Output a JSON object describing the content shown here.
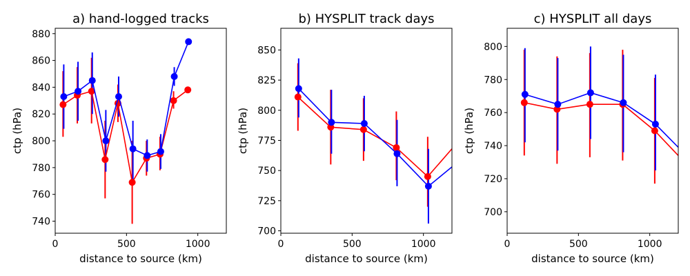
{
  "colors": {
    "series_red": "#ff0000",
    "series_blue": "#0000ff",
    "axis": "#000000",
    "background": "#ffffff"
  },
  "chart_data": [
    {
      "type": "line",
      "title": "a) hand-logged tracks",
      "xlabel": "distance to source (km)",
      "ylabel": "ctp (hPa)",
      "xlim": [
        0,
        1200
      ],
      "ylim": [
        731,
        884
      ],
      "xticks": [
        0,
        500,
        1000
      ],
      "xtick_labels": [
        "0",
        "500",
        "1000"
      ],
      "yticks": [
        740,
        760,
        780,
        800,
        820,
        840,
        860,
        880
      ],
      "ytick_labels": [
        "740",
        "760",
        "780",
        "800",
        "820",
        "840",
        "860",
        "880"
      ],
      "grid": false,
      "series": [
        {
          "name": "red",
          "color": "#ff0000",
          "x": [
            55,
            155,
            255,
            350,
            440,
            540,
            640,
            735,
            830,
            930
          ],
          "y": [
            827,
            834,
            837,
            786,
            828,
            769,
            787,
            790,
            830,
            838
          ],
          "err_low": [
            803,
            813,
            813,
            757,
            814,
            738,
            774,
            778,
            824,
            null
          ],
          "err_high": [
            852,
            855,
            862,
            815,
            842,
            800,
            800,
            803,
            837,
            null
          ]
        },
        {
          "name": "blue",
          "color": "#0000ff",
          "x": [
            60,
            160,
            260,
            355,
            445,
            545,
            645,
            740,
            835,
            935
          ],
          "y": [
            833,
            837,
            845,
            800,
            833,
            794,
            789,
            792,
            848,
            874
          ],
          "err_low": [
            809,
            815,
            820,
            777,
            818,
            770,
            777,
            779,
            841,
            null
          ],
          "err_high": [
            857,
            859,
            866,
            823,
            848,
            815,
            801,
            805,
            855,
            null
          ]
        }
      ]
    },
    {
      "type": "line",
      "title": "b) HYSPLIT track days",
      "xlabel": "distance to source (km)",
      "ylabel": "ctp (hPa)",
      "xlim": [
        0,
        1200
      ],
      "ylim": [
        698,
        868
      ],
      "xticks": [
        0,
        500,
        1000
      ],
      "xtick_labels": [
        "0",
        "500",
        "1000"
      ],
      "yticks": [
        700,
        725,
        750,
        775,
        800,
        825,
        850
      ],
      "ytick_labels": [
        "700",
        "725",
        "750",
        "775",
        "800",
        "825",
        "850"
      ],
      "grid": false,
      "series": [
        {
          "name": "red",
          "color": "#ff0000",
          "x": [
            120,
            350,
            580,
            810,
            1030,
            1200
          ],
          "y": [
            811,
            786,
            784,
            769,
            745,
            768
          ],
          "err_low": [
            783,
            755,
            758,
            742,
            720,
            null
          ],
          "err_high": [
            839,
            817,
            810,
            799,
            778,
            null
          ]
        },
        {
          "name": "blue",
          "color": "#0000ff",
          "x": [
            125,
            355,
            585,
            815,
            1035,
            1200
          ],
          "y": [
            818,
            790,
            789,
            764,
            737,
            753
          ],
          "err_low": [
            794,
            764,
            766,
            737,
            706,
            null
          ],
          "err_high": [
            843,
            817,
            812,
            792,
            768,
            null
          ]
        }
      ]
    },
    {
      "type": "line",
      "title": "c) HYSPLIT all days",
      "xlabel": "distance to source (km)",
      "ylabel": "ctp (hPa)",
      "xlim": [
        0,
        1200
      ],
      "ylim": [
        687,
        811
      ],
      "xticks": [
        0,
        500,
        1000
      ],
      "xtick_labels": [
        "0",
        "500",
        "1000"
      ],
      "yticks": [
        700,
        720,
        740,
        760,
        780,
        800
      ],
      "ytick_labels": [
        "700",
        "720",
        "740",
        "760",
        "780",
        "800"
      ],
      "grid": false,
      "series": [
        {
          "name": "red",
          "color": "#ff0000",
          "x": [
            120,
            350,
            580,
            810,
            1035,
            1200
          ],
          "y": [
            766,
            762,
            765,
            765,
            749,
            734
          ],
          "err_low": [
            734,
            729,
            733,
            731,
            717,
            null
          ],
          "err_high": [
            798,
            794,
            796,
            798,
            781,
            null
          ]
        },
        {
          "name": "blue",
          "color": "#0000ff",
          "x": [
            125,
            355,
            585,
            815,
            1040,
            1200
          ],
          "y": [
            771,
            765,
            772,
            766,
            753,
            739
          ],
          "err_low": [
            742,
            737,
            744,
            736,
            725,
            null
          ],
          "err_high": [
            799,
            793,
            800,
            795,
            783,
            null
          ]
        }
      ]
    }
  ]
}
